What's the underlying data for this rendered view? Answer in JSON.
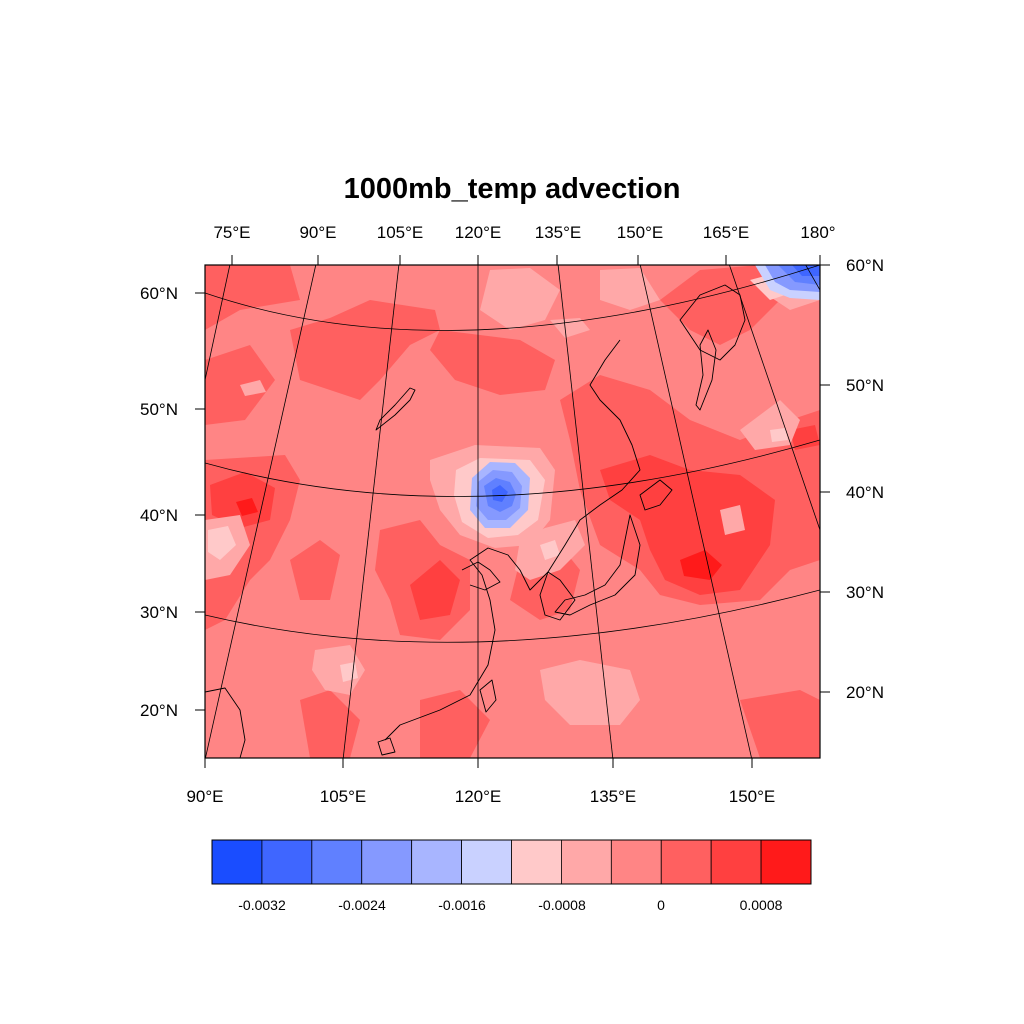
{
  "title": "1000mb_temp advection",
  "top_lon_labels": [
    "75°E",
    "90°E",
    "105°E",
    "120°E",
    "135°E",
    "150°E",
    "165°E",
    "180°"
  ],
  "bottom_lon_labels": [
    "90°E",
    "105°E",
    "120°E",
    "135°E",
    "150°E"
  ],
  "left_lat_labels": [
    "60°N",
    "50°N",
    "40°N",
    "30°N",
    "20°N"
  ],
  "right_lat_labels": [
    "60°N",
    "50°N",
    "40°N",
    "30°N",
    "20°N"
  ],
  "colorbar": {
    "colors": [
      "#1a4dff",
      "#3f66ff",
      "#6080ff",
      "#8599ff",
      "#a8b5ff",
      "#c9d1ff",
      "#ffc9c9",
      "#ffa8a8",
      "#ff8585",
      "#ff6060",
      "#ff4040",
      "#ff1a1a"
    ],
    "tick_labels": [
      "-0.0032",
      "-0.0024",
      "-0.0016",
      "-0.0008",
      "0",
      "0.0008"
    ]
  }
}
